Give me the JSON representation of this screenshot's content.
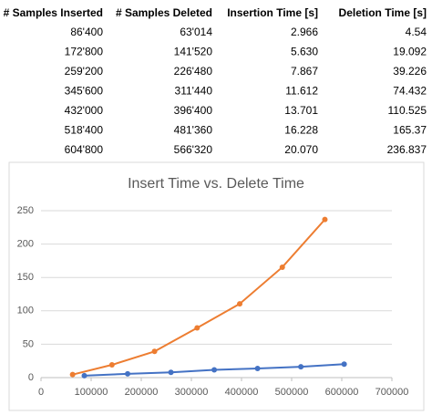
{
  "table": {
    "header": [
      "# Samples Inserted",
      "# Samples Deleted",
      "Insertion Time [s]",
      "Deletion Time [s]"
    ],
    "rows": [
      [
        "86'400",
        "63'014",
        "2.966",
        "4.54"
      ],
      [
        "172'800",
        "141'520",
        "5.630",
        "19.092"
      ],
      [
        "259'200",
        "226'480",
        "7.867",
        "39.226"
      ],
      [
        "345'600",
        "311'440",
        "11.612",
        "74.432"
      ],
      [
        "432'000",
        "396'400",
        "13.701",
        "110.525"
      ],
      [
        "518'400",
        "481'360",
        "16.228",
        "165.37"
      ],
      [
        "604'800",
        "566'320",
        "20.070",
        "236.837"
      ]
    ]
  },
  "chart_data": {
    "type": "line",
    "title": "Insert Time vs. Delete Time",
    "series": [
      {
        "color": "#4472c4",
        "x": [
          86400,
          172800,
          259200,
          345600,
          432000,
          518400,
          604800
        ],
        "values": [
          2.966,
          5.63,
          7.867,
          11.612,
          13.701,
          16.228,
          20.07
        ]
      },
      {
        "color": "#ed7d31",
        "x": [
          63014,
          141520,
          226480,
          311440,
          396400,
          481360,
          566320
        ],
        "values": [
          4.54,
          19.092,
          39.226,
          74.432,
          110.525,
          165.37,
          236.837
        ]
      }
    ],
    "xlim": [
      0,
      700000
    ],
    "xticks": [
      0,
      100000,
      200000,
      300000,
      400000,
      500000,
      600000,
      700000
    ],
    "ylim": [
      0,
      250
    ],
    "yticks": [
      0,
      50,
      100,
      150,
      200,
      250
    ],
    "grid": true
  }
}
